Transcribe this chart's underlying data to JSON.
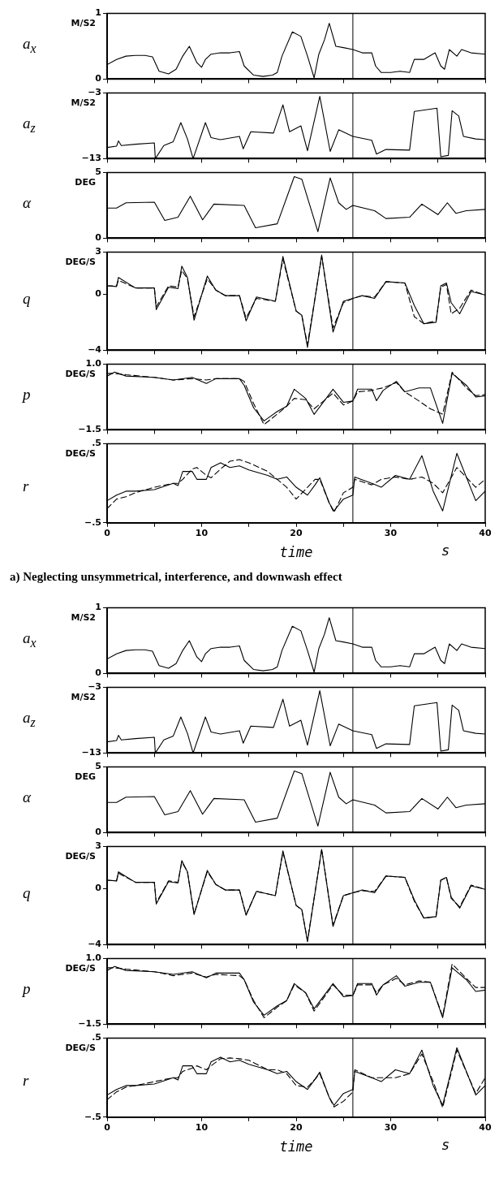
{
  "chart_data": [
    {
      "type": "line",
      "ylabel": "a$_{x}$",
      "annotations": [
        "M/S2"
      ],
      "tick_labels": "y",
      "xlim": [
        0,
        40
      ],
      "ylim": [
        0,
        1
      ],
      "xticks": [
        0,
        5,
        10,
        15,
        20,
        25,
        30,
        35,
        40
      ],
      "yticks": [
        0,
        1
      ],
      "ref_lines": [
        {
          "axis": "x",
          "value": 26
        }
      ],
      "x": [
        0,
        1,
        2,
        3,
        4,
        4.8,
        5.5,
        6.5,
        7.3,
        8,
        8.7,
        9.5,
        10,
        10.4,
        11,
        12,
        13,
        14,
        14.5,
        15.5,
        16.5,
        17.5,
        18,
        18.5,
        19.6,
        20.5,
        21.2,
        21.9,
        22.4,
        23,
        23.5,
        24.2,
        25,
        26,
        27,
        28,
        28.4,
        29,
        30,
        31,
        32,
        32.5,
        33.5,
        34.7,
        35.3,
        35.7,
        36.2,
        37,
        37.5,
        38.5,
        40
      ],
      "series": [
        {
          "color": "#000000",
          "line_style": "solid",
          "values": [
            0.22,
            0.3,
            0.35,
            0.36,
            0.36,
            0.34,
            0.12,
            0.08,
            0.15,
            0.35,
            0.5,
            0.25,
            0.18,
            0.3,
            0.38,
            0.4,
            0.4,
            0.42,
            0.2,
            0.06,
            0.04,
            0.06,
            0.1,
            0.35,
            0.72,
            0.65,
            0.35,
            0.02,
            0.38,
            0.6,
            0.85,
            0.5,
            0.48,
            0.45,
            0.4,
            0.4,
            0.2,
            0.1,
            0.1,
            0.12,
            0.1,
            0.3,
            0.3,
            0.4,
            0.2,
            0.15,
            0.45,
            0.35,
            0.45,
            0.4,
            0.38
          ]
        }
      ]
    },
    {
      "type": "line",
      "ylabel": "a$_{z}$",
      "annotations": [
        "M/S2"
      ],
      "tick_labels": "y",
      "xlim": [
        0,
        40
      ],
      "ylim": [
        -13,
        -3
      ],
      "xticks": [
        0,
        5,
        10,
        15,
        20,
        25,
        30,
        35,
        40
      ],
      "yticks": [
        {
          "value": -13,
          "label": "−13"
        },
        {
          "value": -3,
          "label": "−3"
        }
      ],
      "ref_lines": [
        {
          "axis": "x",
          "value": 26
        }
      ],
      "x": [
        0,
        1,
        1.2,
        1.5,
        3,
        5,
        5.1,
        6,
        7,
        7.8,
        8.5,
        9.1,
        10.4,
        11,
        12,
        14,
        14.4,
        15.2,
        17.6,
        18.6,
        19.3,
        20.5,
        21.2,
        22.5,
        23.6,
        24.5,
        26,
        28,
        28.5,
        29.5,
        32,
        32.5,
        34,
        34.9,
        35.3,
        36.1,
        36.5,
        37.2,
        37.7,
        39,
        40
      ],
      "series": [
        {
          "color": "#000000",
          "line_style": "solid",
          "values": [
            -11.3,
            -11.1,
            -10.3,
            -11,
            -10.8,
            -10.6,
            -13,
            -11,
            -10.4,
            -7.5,
            -10,
            -13,
            -7.5,
            -9.8,
            -10.1,
            -9.6,
            -11.5,
            -8.9,
            -9.1,
            -4.8,
            -8.9,
            -8.0,
            -11.8,
            -3.5,
            -11.9,
            -8.6,
            -9.6,
            -10.2,
            -12.3,
            -11.6,
            -11.7,
            -5.8,
            -5.5,
            -5.3,
            -12.7,
            -12.5,
            -5.7,
            -6.5,
            -9.6,
            -10,
            -10.1
          ]
        }
      ]
    },
    {
      "type": "line",
      "ylabel": "α",
      "annotations": [
        "DEG"
      ],
      "tick_labels": "y",
      "xlim": [
        0,
        40
      ],
      "ylim": [
        0,
        5
      ],
      "xticks": [
        0,
        5,
        10,
        15,
        20,
        25,
        30,
        35,
        40
      ],
      "yticks": [
        0,
        5
      ],
      "ref_lines": [
        {
          "axis": "x",
          "value": 26
        }
      ],
      "x": [
        0,
        1,
        2,
        5,
        6.1,
        7.5,
        8.8,
        10.1,
        11.3,
        14.5,
        15.7,
        18,
        19.8,
        20.6,
        22.3,
        23.6,
        24.5,
        25.3,
        26,
        28.3,
        29.5,
        32,
        33.3,
        35,
        36,
        36.9,
        38,
        40
      ],
      "series": [
        {
          "color": "#000000",
          "line_style": "solid",
          "values": [
            2.3,
            2.3,
            2.7,
            2.75,
            1.35,
            1.6,
            3.2,
            1.4,
            2.6,
            2.5,
            0.8,
            1.1,
            4.7,
            4.5,
            0.5,
            4.6,
            2.7,
            2.2,
            2.5,
            2.1,
            1.5,
            1.6,
            2.6,
            1.8,
            2.7,
            1.9,
            2.1,
            2.2
          ]
        }
      ]
    },
    {
      "type": "line",
      "ylabel": "q",
      "annotations": [
        "DEG/S"
      ],
      "tick_labels": "y",
      "xlim": [
        0,
        40
      ],
      "ylim": [
        -4,
        3
      ],
      "xticks": [
        0,
        5,
        10,
        15,
        20,
        25,
        30,
        35,
        40
      ],
      "yticks": [
        {
          "value": -4,
          "label": "−4"
        },
        0,
        3
      ],
      "ref_lines": [
        {
          "axis": "x",
          "value": 26
        }
      ],
      "x": [
        0,
        1,
        1.2,
        3,
        5,
        5.2,
        6.5,
        7.5,
        7.9,
        8.5,
        9.2,
        10.6,
        11.5,
        12.5,
        14,
        14.7,
        15.8,
        17.8,
        18.6,
        20,
        20.6,
        21.2,
        22.7,
        23.9,
        25,
        26,
        27,
        28.3,
        29.5,
        31.5,
        32.5,
        33.5,
        34.8,
        35.3,
        35.9,
        36.4,
        37.3,
        38.5,
        40
      ],
      "series": [
        {
          "color": "#000000",
          "line_style": "solid",
          "values": [
            0.6,
            0.55,
            1.2,
            0.45,
            0.45,
            -1.1,
            0.5,
            0.4,
            2.0,
            1.2,
            -1.85,
            1.3,
            0.3,
            -0.1,
            -0.1,
            -1.9,
            -0.2,
            -0.5,
            2.7,
            -1.2,
            -1.5,
            -3.8,
            2.8,
            -2.7,
            -0.5,
            -0.3,
            -0.1,
            -0.3,
            0.9,
            0.8,
            -0.8,
            -2.1,
            -2.0,
            0.6,
            0.8,
            -0.6,
            -1.4,
            0.2,
            -0.05
          ]
        },
        {
          "color": "#000000",
          "line_style": "dashed",
          "values": [
            0.6,
            0.6,
            1.0,
            0.45,
            0.45,
            -0.9,
            0.6,
            0.5,
            1.7,
            1.1,
            -1.6,
            1.1,
            0.3,
            -0.1,
            -0.1,
            -1.7,
            -0.3,
            -0.5,
            2.5,
            -1.2,
            -1.5,
            -3.6,
            2.7,
            -2.4,
            -0.6,
            -0.3,
            -0.1,
            -0.2,
            0.9,
            0.8,
            -1.6,
            -2.1,
            -1.9,
            0.5,
            0.7,
            -1.4,
            -1.0,
            0.3,
            -0.05
          ]
        }
      ]
    },
    {
      "type": "line",
      "ylabel": "p",
      "annotations": [
        "DEG/S"
      ],
      "tick_labels": "y",
      "xlim": [
        0,
        40
      ],
      "ylim": [
        -1.5,
        1
      ],
      "xticks": [
        0,
        5,
        10,
        15,
        20,
        25,
        30,
        35,
        40
      ],
      "yticks": [
        {
          "value": -1.5,
          "label": "−1.5"
        },
        {
          "value": 1,
          "label": "1.0"
        }
      ],
      "ref_lines": [
        {
          "axis": "x",
          "value": 26
        }
      ],
      "x": [
        0,
        0.8,
        2,
        5,
        7,
        9,
        10.5,
        11.5,
        14,
        14.5,
        15.5,
        16.6,
        18,
        19,
        19.8,
        21,
        21.9,
        23.9,
        25,
        26,
        26.5,
        28,
        28.5,
        29.2,
        30.6,
        31.5,
        33,
        34.2,
        35.5,
        36.5,
        38,
        39,
        40
      ],
      "series": [
        {
          "color": "#000000",
          "line_style": "solid",
          "values": [
            0.55,
            0.7,
            0.55,
            0.5,
            0.4,
            0.5,
            0.27,
            0.45,
            0.45,
            0.2,
            -0.66,
            -1.16,
            -0.8,
            -0.6,
            0.05,
            -0.3,
            -0.91,
            0.05,
            -0.45,
            -0.4,
            0.05,
            0.05,
            -0.39,
            0.0,
            0.35,
            -0.05,
            0.1,
            0.1,
            -1.25,
            0.65,
            0.2,
            -0.25,
            -0.2
          ]
        },
        {
          "color": "#000000",
          "line_style": "dashed",
          "values": [
            0.65,
            0.65,
            0.6,
            0.5,
            0.4,
            0.45,
            0.4,
            0.45,
            0.45,
            0.35,
            -0.5,
            -1.3,
            -0.9,
            -0.6,
            -0.3,
            -0.35,
            -0.7,
            -0.1,
            -0.55,
            -0.4,
            -0.05,
            0.0,
            0.05,
            0.1,
            0.3,
            -0.05,
            -0.4,
            -0.7,
            -0.9,
            0.7,
            0.1,
            -0.2,
            -0.15
          ]
        }
      ]
    },
    {
      "type": "line",
      "ylabel": "r",
      "xlabel": "time",
      "annotations": [
        "DEG/S",
        "s",
        "a) Neglecting unsymmetrical, interference, and downwash effect"
      ],
      "xlim": [
        0,
        40
      ],
      "ylim": [
        -0.5,
        0.5
      ],
      "xticks": [
        0,
        {
          "value": 5,
          "label": null
        },
        10,
        {
          "value": 15,
          "label": null
        },
        20,
        {
          "value": 25,
          "label": null
        },
        30,
        {
          "value": 35,
          "label": null
        },
        40
      ],
      "yticks": [
        {
          "value": -0.5,
          "label": "−.5"
        },
        {
          "value": 0.5,
          "label": ".5"
        }
      ],
      "ref_lines": [
        {
          "axis": "x",
          "value": 26
        }
      ],
      "x": [
        0,
        1,
        2,
        3,
        5,
        7,
        7.5,
        8,
        9,
        9.5,
        10.5,
        11,
        12,
        13,
        14,
        15,
        17,
        18,
        19,
        20,
        21.2,
        22,
        22.5,
        23.5,
        24,
        25,
        26,
        26.2,
        28,
        29,
        30.5,
        32,
        33.3,
        34.5,
        35.5,
        37,
        39,
        40
      ],
      "series": [
        {
          "color": "#000000",
          "line_style": "solid",
          "values": [
            -0.22,
            -0.15,
            -0.1,
            -0.1,
            -0.08,
            0.0,
            -0.03,
            0.15,
            0.15,
            0.05,
            0.05,
            0.2,
            0.26,
            0.2,
            0.22,
            0.17,
            0.1,
            0.05,
            0.08,
            -0.05,
            -0.15,
            -0.02,
            0.07,
            -0.25,
            -0.35,
            -0.2,
            -0.15,
            0.08,
            0.0,
            -0.05,
            0.1,
            0.05,
            0.35,
            -0.1,
            -0.35,
            0.38,
            -0.22,
            -0.1
          ]
        },
        {
          "color": "#000000",
          "line_style": "dashed",
          "values": [
            -0.32,
            -0.2,
            -0.17,
            -0.12,
            -0.05,
            0,
            0,
            0.05,
            0.18,
            0.2,
            0.1,
            0.07,
            0.18,
            0.28,
            0.3,
            0.26,
            0.15,
            0.05,
            -0.05,
            -0.2,
            -0.05,
            0.05,
            0.05,
            -0.25,
            -0.37,
            -0.12,
            -0.05,
            0.05,
            -0.02,
            0.05,
            0.08,
            0.05,
            0.08,
            0.0,
            -0.12,
            0.2,
            -0.05,
            0.05
          ]
        }
      ]
    },
    {
      "type": "line",
      "ylabel": "a$_{x}$",
      "annotations": [
        "M/S2"
      ],
      "tick_labels": "y",
      "xlim": [
        0,
        40
      ],
      "ylim": [
        0,
        1
      ],
      "xticks": [
        0,
        5,
        10,
        15,
        20,
        25,
        30,
        35,
        40
      ],
      "yticks": [
        0,
        1
      ],
      "ref_lines": [
        {
          "axis": "x",
          "value": 26
        }
      ],
      "x": [
        0,
        1,
        2,
        3,
        4,
        4.8,
        5.5,
        6.5,
        7.3,
        8,
        8.7,
        9.5,
        10,
        10.4,
        11,
        12,
        13,
        14,
        14.5,
        15.5,
        16.5,
        17.5,
        18,
        18.5,
        19.6,
        20.5,
        21.2,
        21.9,
        22.4,
        23,
        23.5,
        24.2,
        25,
        26,
        27,
        28,
        28.4,
        29,
        30,
        31,
        32,
        32.5,
        33.5,
        34.7,
        35.3,
        35.7,
        36.2,
        37,
        37.5,
        38.5,
        40
      ],
      "series": [
        {
          "color": "#000000",
          "line_style": "solid",
          "values": [
            0.22,
            0.3,
            0.35,
            0.36,
            0.36,
            0.34,
            0.12,
            0.08,
            0.15,
            0.35,
            0.5,
            0.25,
            0.18,
            0.3,
            0.38,
            0.4,
            0.4,
            0.42,
            0.2,
            0.06,
            0.04,
            0.06,
            0.1,
            0.35,
            0.72,
            0.65,
            0.35,
            0.02,
            0.38,
            0.6,
            0.85,
            0.5,
            0.48,
            0.45,
            0.4,
            0.4,
            0.2,
            0.1,
            0.1,
            0.12,
            0.1,
            0.3,
            0.3,
            0.4,
            0.2,
            0.15,
            0.45,
            0.35,
            0.45,
            0.4,
            0.38
          ]
        }
      ]
    },
    {
      "type": "line",
      "ylabel": "a$_{z}$",
      "annotations": [
        "M/S2"
      ],
      "tick_labels": "y",
      "xlim": [
        0,
        40
      ],
      "ylim": [
        -13,
        -3
      ],
      "xticks": [
        0,
        5,
        10,
        15,
        20,
        25,
        30,
        35,
        40
      ],
      "yticks": [
        {
          "value": -13,
          "label": "−13"
        },
        {
          "value": -3,
          "label": "−3"
        }
      ],
      "ref_lines": [
        {
          "axis": "x",
          "value": 26
        }
      ],
      "x": [
        0,
        1,
        1.2,
        1.5,
        3,
        5,
        5.1,
        6,
        7,
        7.8,
        8.5,
        9.1,
        10.4,
        11,
        12,
        14,
        14.4,
        15.2,
        17.6,
        18.6,
        19.3,
        20.5,
        21.2,
        22.5,
        23.6,
        24.5,
        26,
        28,
        28.5,
        29.5,
        32,
        32.5,
        34,
        34.9,
        35.3,
        36.1,
        36.5,
        37.2,
        37.7,
        39,
        40
      ],
      "series": [
        {
          "color": "#000000",
          "line_style": "solid",
          "values": [
            -11.3,
            -11.1,
            -10.3,
            -11,
            -10.8,
            -10.6,
            -13,
            -11,
            -10.4,
            -7.5,
            -10,
            -13,
            -7.5,
            -9.8,
            -10.1,
            -9.6,
            -11.5,
            -8.9,
            -9.1,
            -4.8,
            -8.9,
            -8.0,
            -11.8,
            -3.5,
            -11.9,
            -8.6,
            -9.6,
            -10.2,
            -12.3,
            -11.6,
            -11.7,
            -5.8,
            -5.5,
            -5.3,
            -12.7,
            -12.5,
            -5.7,
            -6.5,
            -9.6,
            -10,
            -10.1
          ]
        }
      ]
    },
    {
      "type": "line",
      "ylabel": "α",
      "annotations": [
        "DEG"
      ],
      "tick_labels": "y",
      "xlim": [
        0,
        40
      ],
      "ylim": [
        0,
        5
      ],
      "xticks": [
        0,
        5,
        10,
        15,
        20,
        25,
        30,
        35,
        40
      ],
      "yticks": [
        0,
        5
      ],
      "ref_lines": [
        {
          "axis": "x",
          "value": 26
        }
      ],
      "x": [
        0,
        1,
        2,
        5,
        6.1,
        7.5,
        8.8,
        10.1,
        11.3,
        14.5,
        15.7,
        18,
        19.8,
        20.6,
        22.3,
        23.6,
        24.5,
        25.3,
        26,
        28.3,
        29.5,
        32,
        33.3,
        35,
        36,
        36.9,
        38,
        40
      ],
      "series": [
        {
          "color": "#000000",
          "line_style": "solid",
          "values": [
            2.3,
            2.3,
            2.7,
            2.75,
            1.35,
            1.6,
            3.2,
            1.4,
            2.6,
            2.5,
            0.8,
            1.1,
            4.7,
            4.5,
            0.5,
            4.6,
            2.7,
            2.2,
            2.5,
            2.1,
            1.5,
            1.6,
            2.6,
            1.8,
            2.7,
            1.9,
            2.1,
            2.2
          ]
        }
      ]
    },
    {
      "type": "line",
      "ylabel": "q",
      "annotations": [
        "DEG/S"
      ],
      "tick_labels": "y",
      "xlim": [
        0,
        40
      ],
      "ylim": [
        -4,
        3
      ],
      "xticks": [
        0,
        5,
        10,
        15,
        20,
        25,
        30,
        35,
        40
      ],
      "yticks": [
        {
          "value": -4,
          "label": "−4"
        },
        0,
        3
      ],
      "ref_lines": [
        {
          "axis": "x",
          "value": 26
        }
      ],
      "x": [
        0,
        1,
        1.2,
        3,
        5,
        5.2,
        6.5,
        7.5,
        7.9,
        8.5,
        9.2,
        10.6,
        11.5,
        12.5,
        14,
        14.7,
        15.8,
        17.8,
        18.6,
        20,
        20.6,
        21.2,
        22.7,
        23.9,
        25,
        26,
        27,
        28.3,
        29.5,
        31.5,
        32.5,
        33.5,
        34.8,
        35.3,
        35.9,
        36.4,
        37.3,
        38.5,
        40
      ],
      "series": [
        {
          "color": "#000000",
          "line_style": "solid",
          "values": [
            0.6,
            0.55,
            1.2,
            0.45,
            0.45,
            -1.1,
            0.5,
            0.4,
            2.0,
            1.2,
            -1.85,
            1.3,
            0.3,
            -0.1,
            -0.1,
            -1.9,
            -0.2,
            -0.5,
            2.7,
            -1.2,
            -1.5,
            -3.8,
            2.8,
            -2.7,
            -0.5,
            -0.3,
            -0.1,
            -0.3,
            0.9,
            0.8,
            -0.8,
            -2.1,
            -2.0,
            0.6,
            0.8,
            -0.6,
            -1.4,
            0.2,
            -0.05
          ]
        },
        {
          "color": "#000000",
          "line_style": "dashed",
          "values": [
            0.6,
            0.55,
            1.1,
            0.45,
            0.45,
            -1.0,
            0.55,
            0.45,
            1.9,
            1.2,
            -1.8,
            1.2,
            0.3,
            -0.1,
            -0.1,
            -1.85,
            -0.2,
            -0.5,
            2.6,
            -1.2,
            -1.5,
            -3.7,
            2.8,
            -2.6,
            -0.5,
            -0.3,
            -0.15,
            -0.2,
            0.9,
            0.8,
            -0.9,
            -2.1,
            -2.0,
            0.6,
            0.8,
            -0.7,
            -1.3,
            0.25,
            -0.05
          ]
        }
      ]
    },
    {
      "type": "line",
      "ylabel": "p",
      "annotations": [
        "DEG/S"
      ],
      "tick_labels": "y",
      "xlim": [
        0,
        40
      ],
      "ylim": [
        -1.5,
        1
      ],
      "xticks": [
        0,
        5,
        10,
        15,
        20,
        25,
        30,
        35,
        40
      ],
      "yticks": [
        {
          "value": -1.5,
          "label": "−1.5"
        },
        {
          "value": 1,
          "label": "1.0"
        }
      ],
      "ref_lines": [
        {
          "axis": "x",
          "value": 26
        }
      ],
      "x": [
        0,
        0.8,
        2,
        5,
        7,
        9,
        10.5,
        11.5,
        14,
        14.5,
        15.5,
        16.6,
        18,
        19,
        19.8,
        21,
        21.9,
        23.9,
        25,
        26,
        26.5,
        28,
        28.5,
        29.2,
        30.6,
        31.5,
        33,
        34.2,
        35.5,
        36.5,
        38,
        39,
        40
      ],
      "series": [
        {
          "color": "#000000",
          "line_style": "solid",
          "values": [
            0.55,
            0.7,
            0.55,
            0.5,
            0.4,
            0.5,
            0.27,
            0.45,
            0.45,
            0.2,
            -0.66,
            -1.16,
            -0.8,
            -0.6,
            0.05,
            -0.3,
            -0.91,
            0.05,
            -0.45,
            -0.4,
            0.05,
            0.05,
            -0.39,
            0.0,
            0.35,
            -0.05,
            0.1,
            0.1,
            -1.25,
            0.65,
            0.2,
            -0.25,
            -0.2
          ]
        },
        {
          "color": "#000000",
          "line_style": "dashed",
          "values": [
            0.65,
            0.65,
            0.6,
            0.5,
            0.35,
            0.45,
            0.3,
            0.4,
            0.35,
            0.2,
            -0.6,
            -1.25,
            -0.85,
            -0.6,
            0.0,
            -0.3,
            -1.0,
            0.0,
            -0.4,
            -0.4,
            0.0,
            0.0,
            -0.3,
            0.0,
            0.25,
            0.0,
            0.15,
            0.1,
            -1.2,
            0.8,
            0.25,
            -0.1,
            -0.1
          ]
        }
      ]
    },
    {
      "type": "line",
      "ylabel": "r",
      "xlabel": "time",
      "annotations": [
        "DEG/S",
        "s"
      ],
      "xlim": [
        0,
        40
      ],
      "ylim": [
        -0.5,
        0.5
      ],
      "xticks": [
        0,
        {
          "value": 5,
          "label": null
        },
        10,
        {
          "value": 15,
          "label": null
        },
        20,
        {
          "value": 25,
          "label": null
        },
        30,
        {
          "value": 35,
          "label": null
        },
        40
      ],
      "yticks": [
        {
          "value": -0.5,
          "label": "−.5"
        },
        {
          "value": 0.5,
          "label": ".5"
        }
      ],
      "ref_lines": [
        {
          "axis": "x",
          "value": 26
        }
      ],
      "x": [
        0,
        1,
        2,
        3,
        5,
        7,
        7.5,
        8,
        9,
        9.5,
        10.5,
        11,
        12,
        13,
        14,
        15,
        17,
        18,
        19,
        20,
        21.2,
        22,
        22.5,
        23.5,
        24,
        25,
        26,
        26.2,
        28,
        29,
        30.5,
        32,
        33.3,
        34.5,
        35.5,
        37,
        39,
        40
      ],
      "series": [
        {
          "color": "#000000",
          "line_style": "solid",
          "values": [
            -0.22,
            -0.15,
            -0.1,
            -0.1,
            -0.08,
            0.0,
            -0.03,
            0.15,
            0.15,
            0.05,
            0.05,
            0.2,
            0.26,
            0.2,
            0.22,
            0.17,
            0.1,
            0.05,
            0.08,
            -0.05,
            -0.15,
            -0.02,
            0.07,
            -0.25,
            -0.35,
            -0.2,
            -0.15,
            0.08,
            0.0,
            -0.05,
            0.1,
            0.05,
            0.35,
            -0.1,
            -0.35,
            0.38,
            -0.22,
            -0.1
          ]
        },
        {
          "color": "#000000",
          "line_style": "dashed",
          "values": [
            -0.28,
            -0.18,
            -0.12,
            -0.1,
            -0.05,
            0,
            0,
            0.08,
            0.12,
            0.15,
            0.1,
            0.15,
            0.24,
            0.25,
            0.24,
            0.22,
            0.1,
            0.1,
            0.05,
            -0.1,
            -0.12,
            -0.02,
            0.05,
            -0.25,
            -0.37,
            -0.3,
            -0.18,
            0.1,
            0,
            0,
            0,
            0.05,
            0.3,
            -0.05,
            -0.38,
            0.35,
            -0.2,
            0
          ]
        }
      ]
    }
  ]
}
